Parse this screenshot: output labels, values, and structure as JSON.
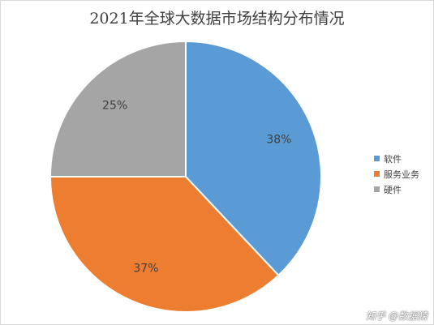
{
  "chart_data": {
    "type": "pie",
    "title": "2021年全球大数据市场结构分布情况",
    "categories": [
      "软件",
      "服务业务",
      "硬件"
    ],
    "values": [
      38,
      37,
      25
    ],
    "data_labels": [
      "38%",
      "37%",
      "25%"
    ],
    "colors": [
      "#5b9bd5",
      "#ed7d31",
      "#a5a5a5"
    ],
    "legend_position": "right"
  },
  "watermark": "知乎 @数据猿"
}
